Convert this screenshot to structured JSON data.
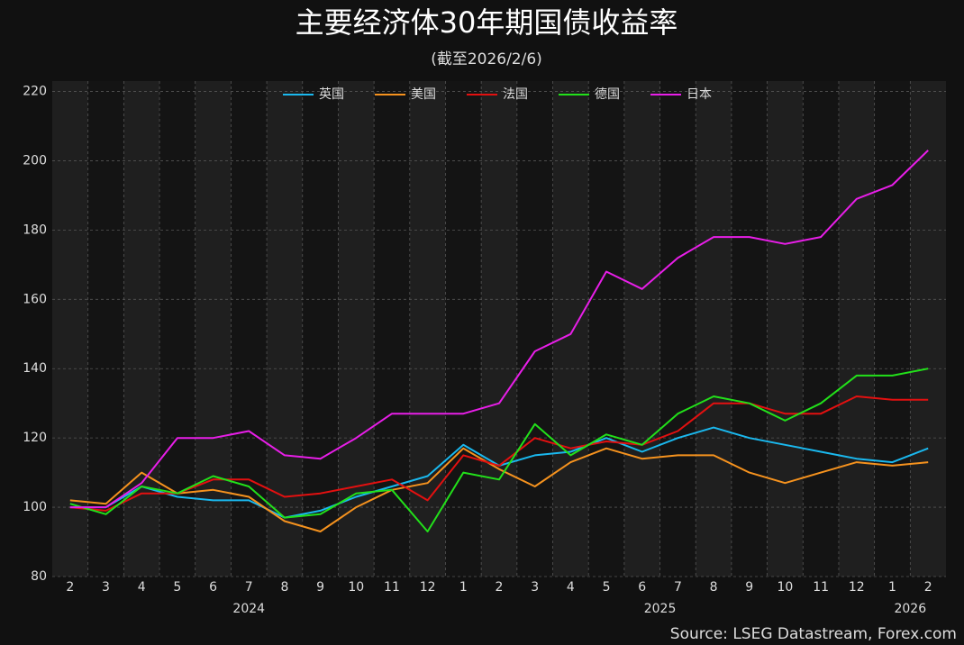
{
  "chart_data": {
    "type": "line",
    "title": "主要经济体30年期国债收益率",
    "subtitle": "(截至2026/2/6)",
    "source": "Source: LSEG Datastream, Forex.com",
    "categories": [
      "2",
      "3",
      "4",
      "5",
      "6",
      "7",
      "8",
      "9",
      "10",
      "11",
      "12",
      "1",
      "2",
      "3",
      "4",
      "5",
      "6",
      "7",
      "8",
      "9",
      "10",
      "11",
      "12",
      "1",
      "2"
    ],
    "year_labels": [
      "2024",
      "2025",
      "2026"
    ],
    "ylim": [
      80,
      223
    ],
    "yticks": [
      80,
      100,
      120,
      140,
      160,
      180,
      200,
      220
    ],
    "grid": true,
    "legend": "top",
    "series": [
      {
        "name": "英国",
        "color": "#1ab8ee",
        "values": [
          100,
          100,
          106,
          103,
          102,
          102,
          97,
          99,
          103,
          106,
          109,
          118,
          112,
          115,
          116,
          120,
          116,
          120,
          123,
          120,
          118,
          116,
          114,
          113,
          117
        ]
      },
      {
        "name": "美国",
        "color": "#f5921e",
        "values": [
          102,
          101,
          110,
          104,
          105,
          103,
          96,
          93,
          100,
          105,
          107,
          117,
          111,
          106,
          113,
          117,
          114,
          115,
          115,
          110,
          107,
          110,
          113,
          112,
          113
        ]
      },
      {
        "name": "法国",
        "color": "#e31010",
        "values": [
          100,
          99,
          104,
          104,
          108,
          108,
          103,
          104,
          106,
          108,
          102,
          115,
          112,
          120,
          117,
          119,
          118,
          122,
          130,
          130,
          127,
          127,
          132,
          131,
          131
        ]
      },
      {
        "name": "德国",
        "color": "#22e01a",
        "values": [
          101,
          98,
          106,
          104,
          109,
          106,
          97,
          98,
          104,
          105,
          93,
          110,
          108,
          124,
          115,
          121,
          118,
          127,
          132,
          130,
          125,
          130,
          138,
          138,
          140
        ]
      },
      {
        "name": "日本",
        "color": "#e81ee8",
        "values": [
          100,
          100,
          107,
          120,
          120,
          122,
          115,
          114,
          120,
          127,
          127,
          127,
          130,
          145,
          150,
          168,
          163,
          172,
          178,
          178,
          176,
          178,
          189,
          193,
          203
        ]
      }
    ]
  }
}
